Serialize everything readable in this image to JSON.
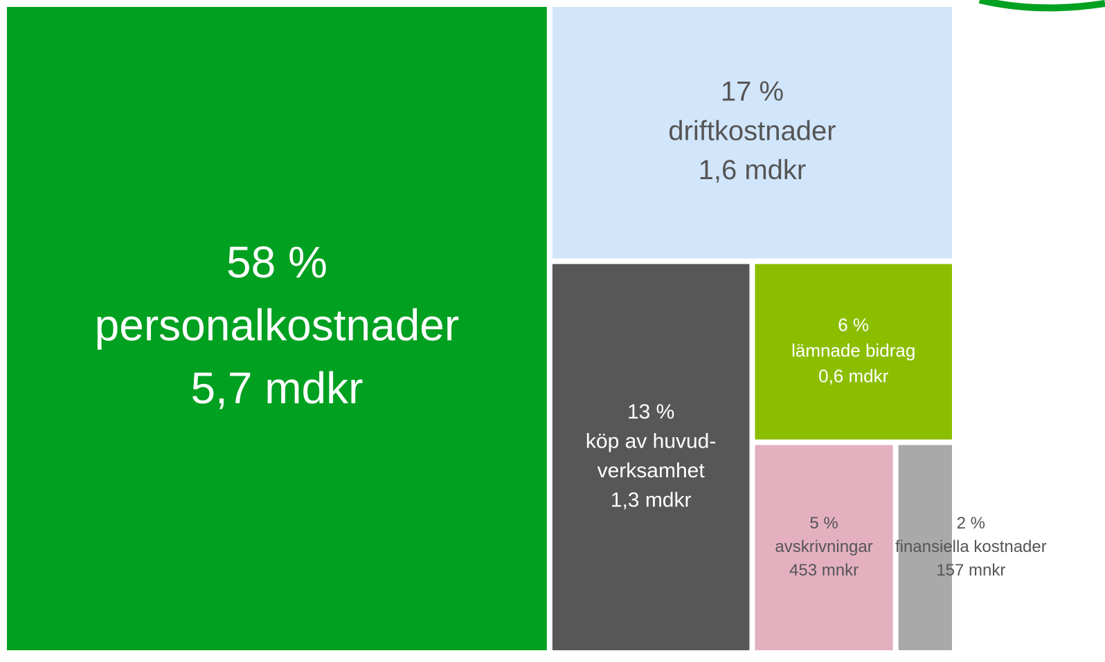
{
  "chart_data": {
    "type": "treemap",
    "categories": [
      "personalkostnader",
      "driftkostnader",
      "köp av huvud-verksamhet",
      "lämnade bidrag",
      "avskrivningar",
      "finansiella kostnader"
    ],
    "values": [
      58,
      17,
      13,
      6,
      5,
      2
    ],
    "value_labels": [
      "58 %",
      "17 %",
      "13 %",
      "6 %",
      "5 %",
      "2 %"
    ],
    "amounts": [
      "5,7 mdkr",
      "1,6 mdkr",
      "1,3 mdkr",
      "0,6 mdkr",
      "453 mnkr",
      "157 mnkr"
    ],
    "colors": [
      "#00a020",
      "#d2e6fb",
      "#575757",
      "#8cbe00",
      "#e4b0c0",
      "#a9a9a9"
    ]
  }
}
